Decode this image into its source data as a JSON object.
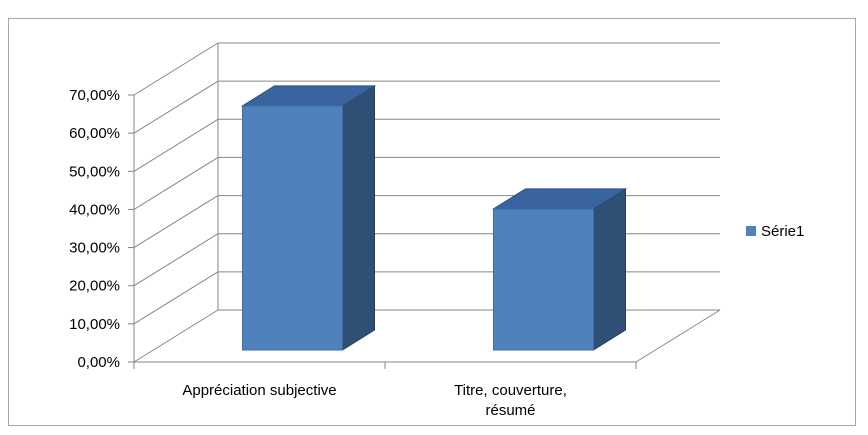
{
  "chart_data": {
    "type": "bar",
    "style": "3d-column",
    "categories": [
      "Appréciation subjective",
      "Titre, couverture, résumé"
    ],
    "category_label_lines": [
      [
        "Appréciation subjective"
      ],
      [
        "Titre, couverture,",
        "résumé"
      ]
    ],
    "series": [
      {
        "name": "Série1",
        "values": [
          0.64,
          0.37
        ],
        "color": "#4f81bd"
      }
    ],
    "ylim": [
      0,
      0.7
    ],
    "y_ticks": [
      0,
      0.1,
      0.2,
      0.3,
      0.4,
      0.5,
      0.6,
      0.7
    ],
    "y_tick_labels": [
      "0,00%",
      "10,00%",
      "20,00%",
      "30,00%",
      "40,00%",
      "50,00%",
      "60,00%",
      "70,00%"
    ],
    "legend_position": "right",
    "grid": true
  }
}
